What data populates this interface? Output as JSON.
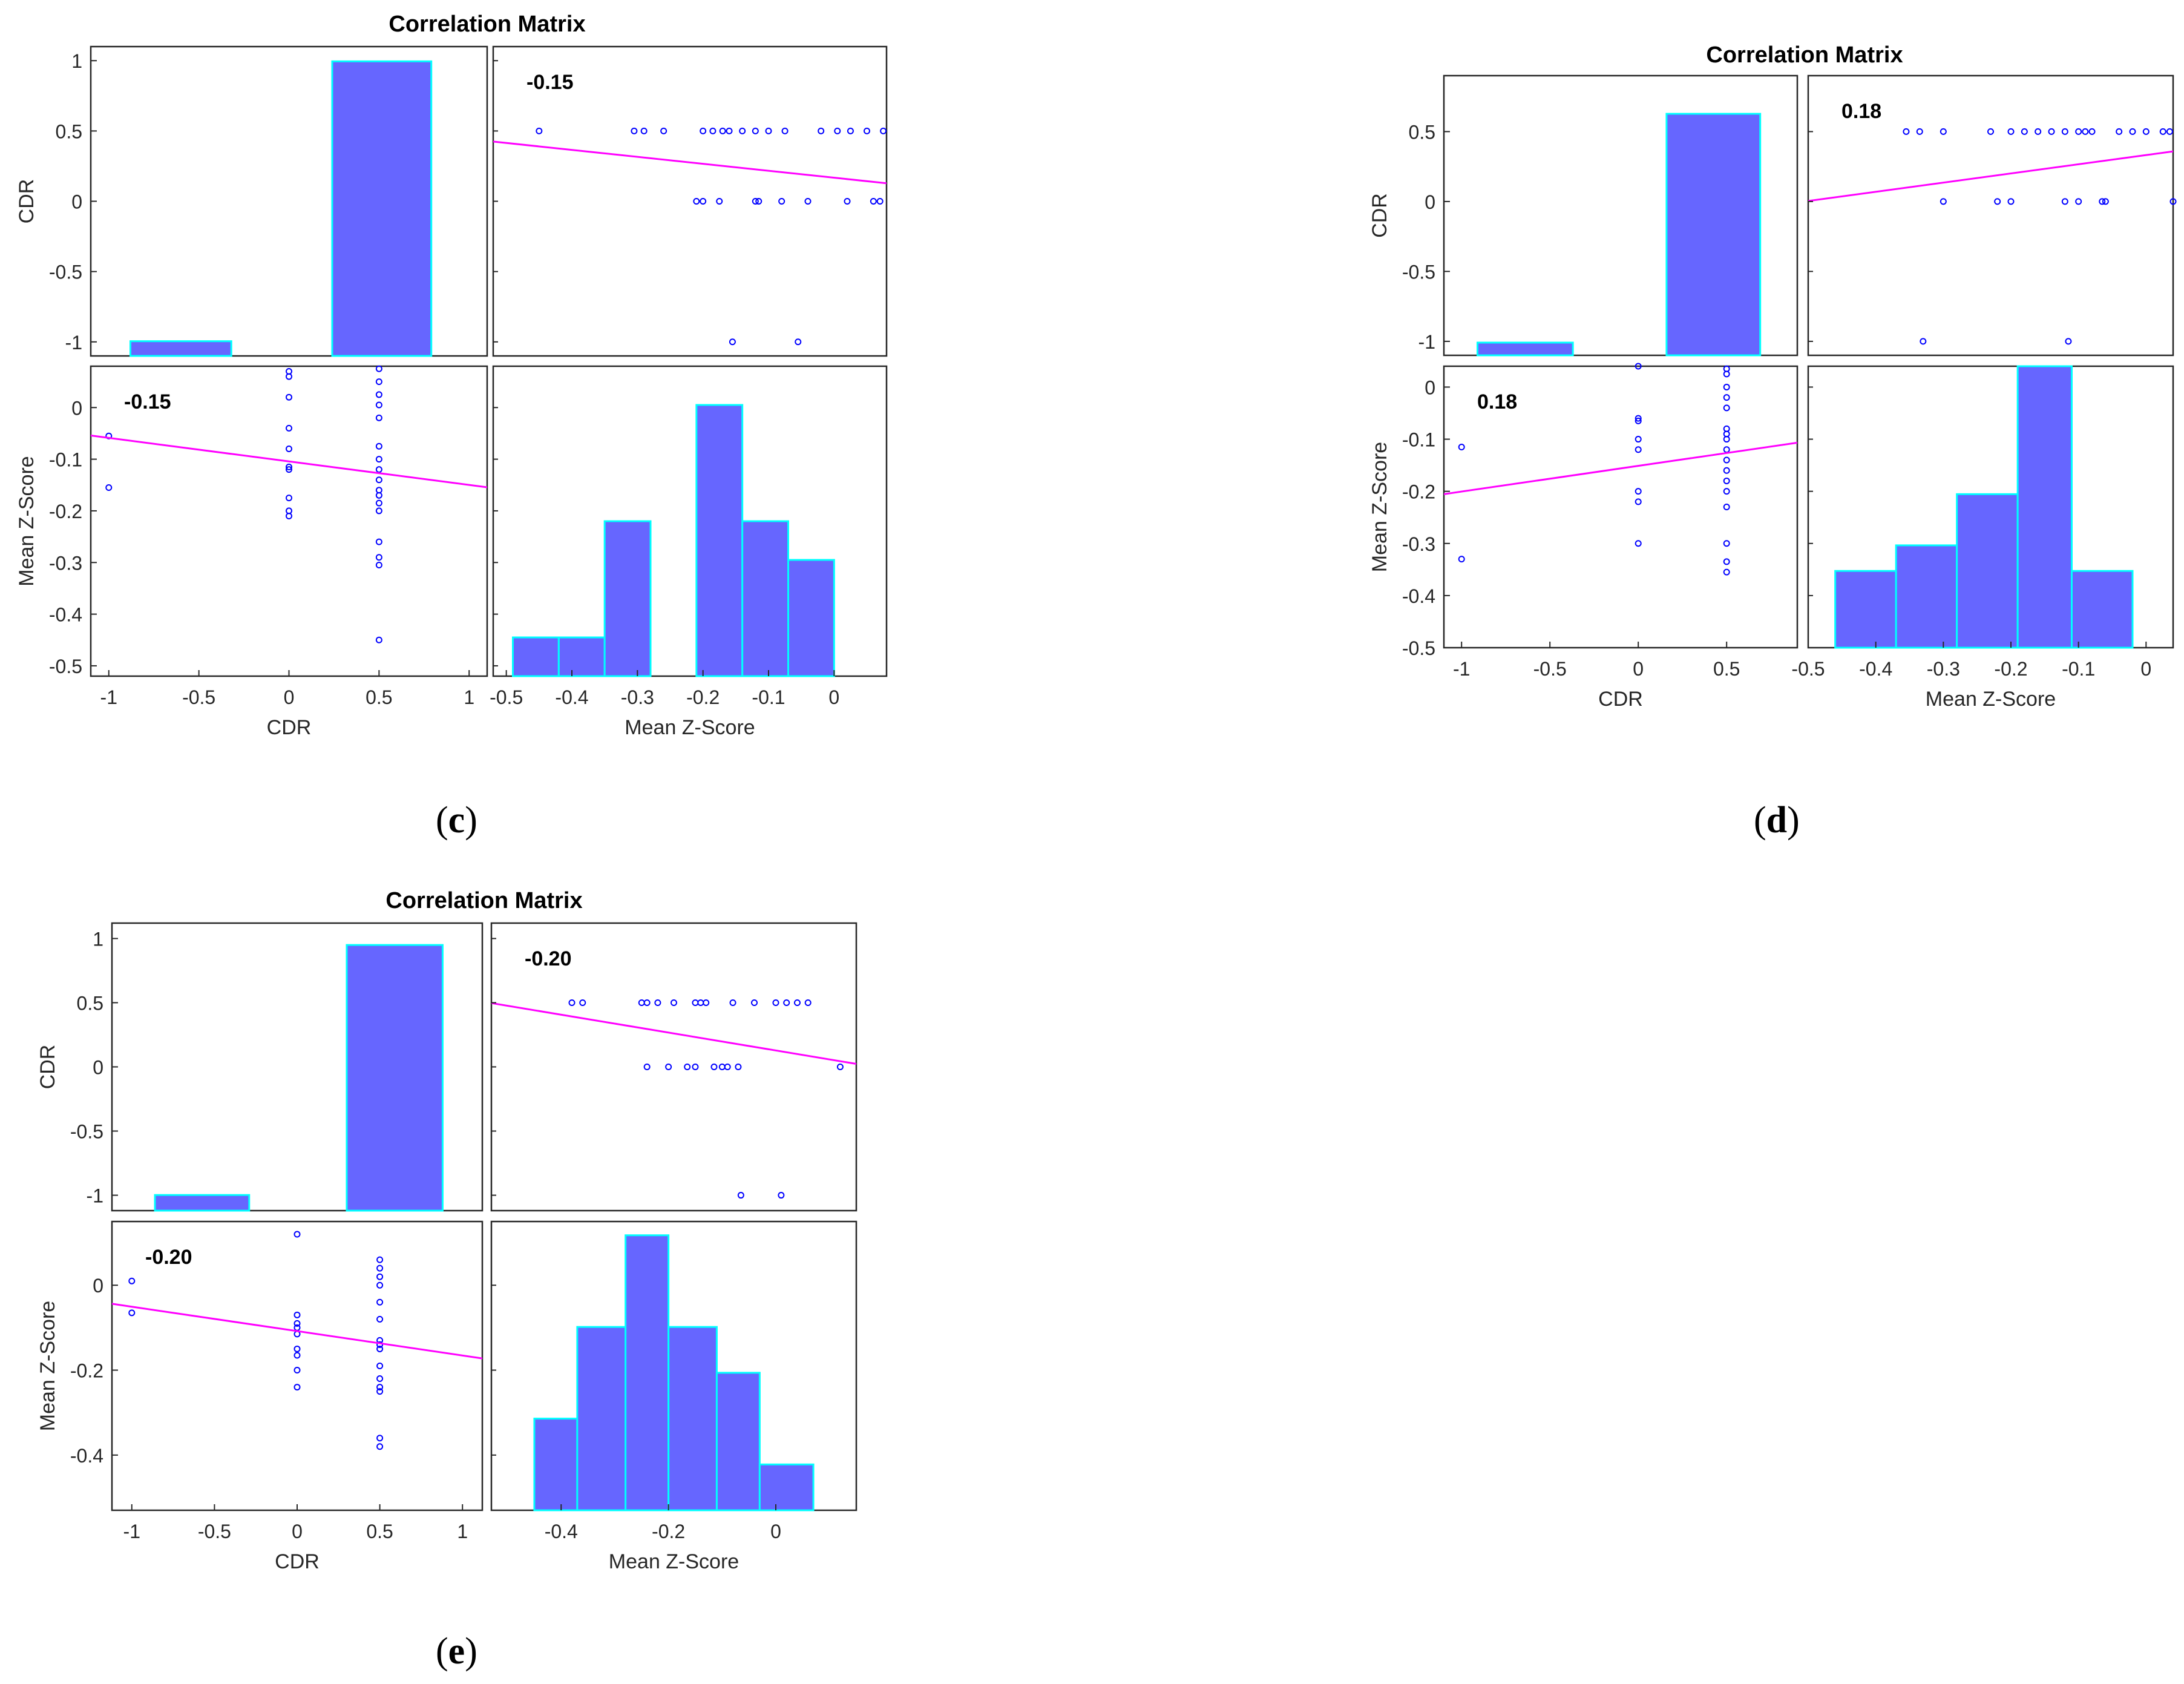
{
  "figures": [
    {
      "id": "c",
      "label": "c",
      "title": "Correlation Matrix",
      "r_label": "-0.15",
      "slope": -0.15,
      "var1": "CDR",
      "var2": "Mean Z-Score",
      "cdr_axis": {
        "min": -1.1,
        "max": 1.1,
        "ticks": [
          -1,
          -0.5,
          0,
          0.5,
          1
        ],
        "tick_labels": [
          "-1",
          "-0.5",
          "0",
          "0.5",
          "1"
        ]
      },
      "z_axis": {
        "min": -0.52,
        "max": 0.08,
        "ticks": [
          -0.5,
          -0.4,
          -0.3,
          -0.2,
          -0.1,
          0
        ],
        "tick_labels": [
          "-0.5",
          "-0.4",
          "-0.3",
          "-0.2",
          "-0.1",
          "0"
        ]
      },
      "cdr_hist": {
        "edges": [
          -0.88,
          -0.32,
          0.24,
          0.79
        ],
        "counts": [
          1,
          0,
          20
        ],
        "max": 21
      },
      "z_hist": {
        "edges": [
          -0.49,
          -0.42,
          -0.35,
          -0.28,
          -0.21,
          -0.14,
          -0.07,
          0.0,
          0.07
        ],
        "counts": [
          1,
          1,
          4,
          0,
          7,
          4,
          3,
          0
        ],
        "max": 8
      },
      "points": [
        [
          -1,
          -0.055
        ],
        [
          -1,
          -0.155
        ],
        [
          0,
          0.07
        ],
        [
          0,
          0.06
        ],
        [
          0,
          0.02
        ],
        [
          0,
          -0.04
        ],
        [
          0,
          -0.08
        ],
        [
          0,
          -0.115
        ],
        [
          0,
          -0.12
        ],
        [
          0,
          -0.175
        ],
        [
          0,
          -0.2
        ],
        [
          0,
          -0.21
        ],
        [
          0.5,
          0.075
        ],
        [
          0.5,
          0.05
        ],
        [
          0.5,
          0.025
        ],
        [
          0.5,
          0.005
        ],
        [
          0.5,
          -0.02
        ],
        [
          0.5,
          -0.075
        ],
        [
          0.5,
          -0.1
        ],
        [
          0.5,
          -0.12
        ],
        [
          0.5,
          -0.14
        ],
        [
          0.5,
          -0.16
        ],
        [
          0.5,
          -0.17
        ],
        [
          0.5,
          -0.185
        ],
        [
          0.5,
          -0.2
        ],
        [
          0.5,
          -0.26
        ],
        [
          0.5,
          -0.29
        ],
        [
          0.5,
          -0.305
        ],
        [
          0.5,
          -0.45
        ]
      ]
    },
    {
      "id": "d",
      "label": "d",
      "title": "Correlation Matrix",
      "r_label": "0.18",
      "slope": 0.18,
      "var1": "CDR",
      "var2": "Mean Z-Score",
      "cdr_axis": {
        "min": -1.1,
        "max": 0.9,
        "ticks": [
          -1,
          -0.5,
          0,
          0.5
        ],
        "tick_labels": [
          "-1",
          "-0.5",
          "0",
          "0.5"
        ]
      },
      "z_axis": {
        "min": -0.5,
        "max": 0.04,
        "ticks": [
          -0.5,
          -0.4,
          -0.3,
          -0.2,
          -0.1,
          0
        ],
        "tick_labels": [
          "-0.5",
          "-0.4",
          "-0.3",
          "-0.2",
          "-0.1",
          "0"
        ]
      },
      "cdr_hist": {
        "edges": [
          -0.91,
          -0.37,
          0.16,
          0.69
        ],
        "counts": [
          1,
          0,
          19
        ],
        "max": 22
      },
      "z_hist": {
        "edges": [
          -0.46,
          -0.37,
          -0.28,
          -0.19,
          -0.11,
          -0.02
        ],
        "counts": [
          3,
          4,
          6,
          11,
          3
        ],
        "max": 11
      },
      "points": [
        [
          -1,
          -0.115
        ],
        [
          -1,
          -0.33
        ],
        [
          0,
          0.04
        ],
        [
          0,
          -0.06
        ],
        [
          0,
          -0.065
        ],
        [
          0,
          -0.1
        ],
        [
          0,
          -0.12
        ],
        [
          0,
          -0.2
        ],
        [
          0,
          -0.22
        ],
        [
          0,
          -0.3
        ],
        [
          0.5,
          0.035
        ],
        [
          0.5,
          0.025
        ],
        [
          0.5,
          0.0
        ],
        [
          0.5,
          -0.02
        ],
        [
          0.5,
          -0.04
        ],
        [
          0.5,
          -0.08
        ],
        [
          0.5,
          -0.09
        ],
        [
          0.5,
          -0.1
        ],
        [
          0.5,
          -0.12
        ],
        [
          0.5,
          -0.14
        ],
        [
          0.5,
          -0.16
        ],
        [
          0.5,
          -0.18
        ],
        [
          0.5,
          -0.2
        ],
        [
          0.5,
          -0.23
        ],
        [
          0.5,
          -0.3
        ],
        [
          0.5,
          -0.335
        ],
        [
          0.5,
          -0.355
        ]
      ]
    },
    {
      "id": "e",
      "label": "e",
      "title": "Correlation Matrix",
      "r_label": "-0.20",
      "slope": -0.2,
      "var1": "CDR",
      "var2": "Mean Z-Score",
      "cdr_axis": {
        "min": -1.12,
        "max": 1.12,
        "ticks": [
          -1,
          -0.5,
          0,
          0.5,
          1
        ],
        "tick_labels": [
          "-1",
          "-0.5",
          "0",
          "0.5",
          "1"
        ]
      },
      "z_axis": {
        "min": -0.53,
        "max": 0.15,
        "ticks": [
          -0.4,
          -0.2,
          0
        ],
        "tick_labels": [
          "-0.4",
          "-0.2",
          "0"
        ]
      },
      "cdr_hist": {
        "edges": [
          -0.86,
          -0.29,
          0.3,
          0.88
        ],
        "counts": [
          1,
          0,
          17
        ],
        "max": 18.4
      },
      "z_hist": {
        "edges": [
          -0.45,
          -0.37,
          -0.28,
          -0.2,
          -0.11,
          -0.03,
          0.07
        ],
        "counts": [
          2,
          4,
          6,
          4,
          3,
          1
        ],
        "max": 6.3
      },
      "points": [
        [
          -1,
          0.01
        ],
        [
          -1,
          -0.065
        ],
        [
          0,
          0.12
        ],
        [
          0,
          -0.07
        ],
        [
          0,
          -0.09
        ],
        [
          0,
          -0.1
        ],
        [
          0,
          -0.115
        ],
        [
          0,
          -0.15
        ],
        [
          0,
          -0.165
        ],
        [
          0,
          -0.2
        ],
        [
          0,
          -0.24
        ],
        [
          0.5,
          0.06
        ],
        [
          0.5,
          0.04
        ],
        [
          0.5,
          0.02
        ],
        [
          0.5,
          0.0
        ],
        [
          0.5,
          -0.04
        ],
        [
          0.5,
          -0.08
        ],
        [
          0.5,
          -0.13
        ],
        [
          0.5,
          -0.14
        ],
        [
          0.5,
          -0.15
        ],
        [
          0.5,
          -0.19
        ],
        [
          0.5,
          -0.22
        ],
        [
          0.5,
          -0.24
        ],
        [
          0.5,
          -0.25
        ],
        [
          0.5,
          -0.36
        ],
        [
          0.5,
          -0.38
        ]
      ]
    }
  ],
  "colors": {
    "bar_fill": "#6666ff",
    "bar_edge": "#00ffff",
    "marker": "#0000ff",
    "fit_line": "#ff00ff",
    "axis": "#262626",
    "tick_text": "#262626"
  }
}
